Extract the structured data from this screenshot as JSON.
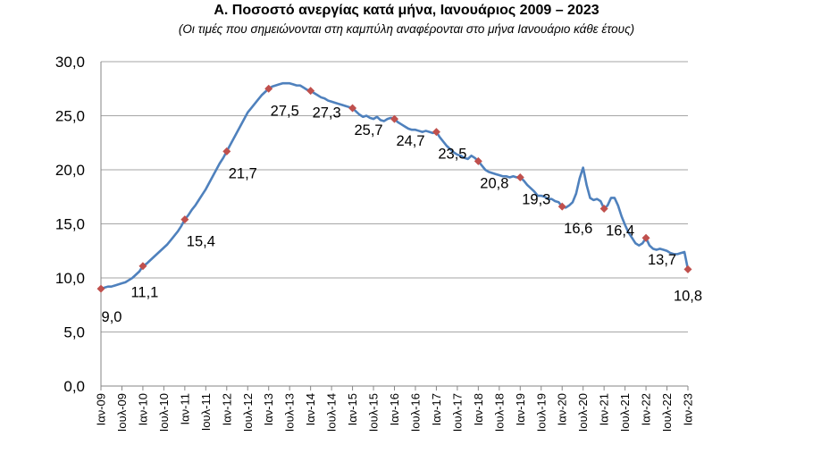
{
  "chart_data": {
    "type": "line",
    "title": "Α. Ποσοστό ανεργίας κατά μήνα, Ιανουάριος 2009 – 2023",
    "subtitle": "(Οι τιμές που σημειώνονται στη καμπύλη αναφέρονται στο μήνα Ιανουάριο κάθε έτους)",
    "y_ticks": [
      "0,0",
      "5,0",
      "10,0",
      "15,0",
      "20,0",
      "25,0",
      "30,0"
    ],
    "ylim": [
      0,
      30
    ],
    "x_ticks": [
      "Ιαν-09",
      "Ιουλ-09",
      "Ιαν-10",
      "Ιουλ-10",
      "Ιαν-11",
      "Ιουλ-11",
      "Ιαν-12",
      "Ιουλ-12",
      "Ιαν-13",
      "Ιουλ-13",
      "Ιαν-14",
      "Ιουλ-14",
      "Ιαν-15",
      "Ιουλ-15",
      "Ιαν-16",
      "Ιουλ-16",
      "Ιαν-17",
      "Ιουλ-17",
      "Ιαν-18",
      "Ιουλ-18",
      "Ιαν-19",
      "Ιουλ-19",
      "Ιαν-20",
      "Ιουλ-20",
      "Ιαν-21",
      "Ιουλ-21",
      "Ιαν-22",
      "Ιουλ-22",
      "Ιαν-23"
    ],
    "grid": true,
    "line_color": "#4f81bd",
    "marker_color": "#c0504d",
    "series": [
      {
        "monthly_values": [
          9.0,
          9.1,
          9.2,
          9.2,
          9.3,
          9.4,
          9.5,
          9.6,
          9.8,
          10.0,
          10.3,
          10.6,
          11.1,
          11.3,
          11.6,
          11.9,
          12.2,
          12.5,
          12.8,
          13.1,
          13.5,
          13.9,
          14.3,
          14.8,
          15.4,
          15.8,
          16.3,
          16.7,
          17.2,
          17.7,
          18.2,
          18.8,
          19.4,
          20.0,
          20.6,
          21.1,
          21.7,
          22.3,
          22.9,
          23.5,
          24.1,
          24.7,
          25.3,
          25.7,
          26.1,
          26.5,
          26.9,
          27.2,
          27.5,
          27.7,
          27.8,
          27.9,
          28.0,
          28.0,
          28.0,
          27.9,
          27.8,
          27.8,
          27.6,
          27.4,
          27.3,
          27.1,
          26.9,
          26.7,
          26.6,
          26.4,
          26.3,
          26.2,
          26.1,
          26.0,
          25.9,
          25.8,
          25.7,
          25.4,
          25.1,
          24.9,
          25.0,
          24.8,
          24.7,
          24.9,
          24.6,
          24.5,
          24.7,
          24.8,
          24.7,
          24.4,
          24.2,
          24.0,
          23.8,
          23.7,
          23.7,
          23.6,
          23.5,
          23.6,
          23.5,
          23.4,
          23.5,
          23.0,
          22.6,
          22.2,
          21.9,
          21.6,
          21.4,
          21.3,
          21.1,
          21.0,
          21.3,
          21.1,
          20.8,
          20.4,
          20.0,
          19.8,
          19.7,
          19.6,
          19.5,
          19.4,
          19.4,
          19.3,
          19.4,
          19.3,
          19.3,
          19.0,
          18.6,
          18.3,
          18.0,
          17.6,
          17.6,
          17.5,
          17.3,
          17.3,
          17.1,
          17.0,
          16.6,
          16.5,
          16.7,
          17.0,
          17.8,
          19.2,
          20.2,
          18.6,
          17.4,
          17.2,
          17.3,
          17.1,
          16.4,
          16.7,
          17.4,
          17.4,
          16.7,
          15.7,
          14.9,
          14.2,
          13.7,
          13.2,
          13.0,
          13.2,
          13.7,
          13.0,
          12.7,
          12.6,
          12.7,
          12.6,
          12.5,
          12.3,
          12.2,
          12.2,
          12.3,
          12.4,
          10.8
        ],
        "january_markers": [
          {
            "label": "Ιαν-09",
            "value": 9.0,
            "text": "9,0"
          },
          {
            "label": "Ιαν-10",
            "value": 11.1,
            "text": "11,1"
          },
          {
            "label": "Ιαν-11",
            "value": 15.4,
            "text": "15,4"
          },
          {
            "label": "Ιαν-12",
            "value": 21.7,
            "text": "21,7"
          },
          {
            "label": "Ιαν-13",
            "value": 27.5,
            "text": "27,5"
          },
          {
            "label": "Ιαν-14",
            "value": 27.3,
            "text": "27,3"
          },
          {
            "label": "Ιαν-15",
            "value": 25.7,
            "text": "25,7"
          },
          {
            "label": "Ιαν-16",
            "value": 24.7,
            "text": "24,7"
          },
          {
            "label": "Ιαν-17",
            "value": 23.5,
            "text": "23,5"
          },
          {
            "label": "Ιαν-18",
            "value": 20.8,
            "text": "20,8"
          },
          {
            "label": "Ιαν-19",
            "value": 19.3,
            "text": "19,3"
          },
          {
            "label": "Ιαν-20",
            "value": 16.6,
            "text": "16,6"
          },
          {
            "label": "Ιαν-21",
            "value": 16.4,
            "text": "16,4"
          },
          {
            "label": "Ιαν-22",
            "value": 13.7,
            "text": "13,7"
          },
          {
            "label": "Ιαν-23",
            "value": 10.8,
            "text": "10,8"
          }
        ]
      }
    ]
  }
}
